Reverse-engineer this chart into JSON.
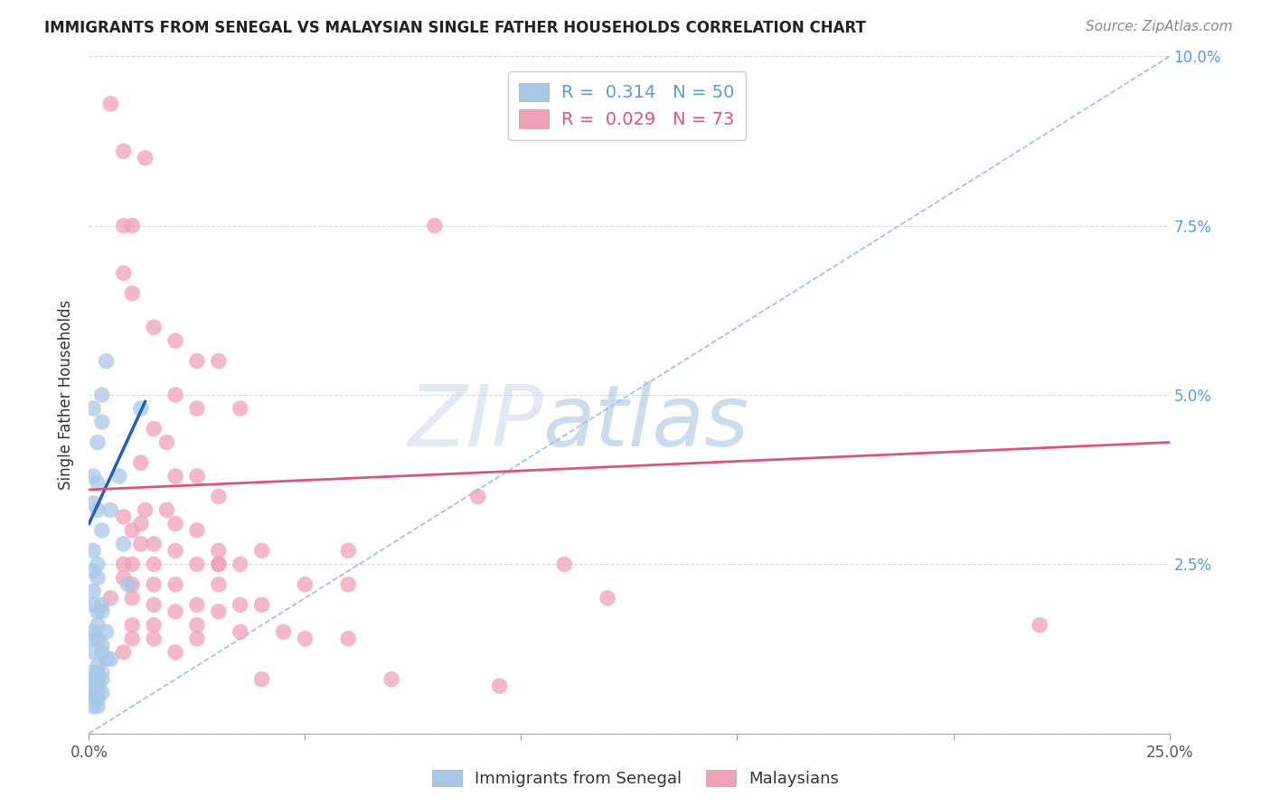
{
  "title": "IMMIGRANTS FROM SENEGAL VS MALAYSIAN SINGLE FATHER HOUSEHOLDS CORRELATION CHART",
  "source": "Source: ZipAtlas.com",
  "ylabel": "Single Father Households",
  "xlim": [
    0.0,
    0.25
  ],
  "ylim": [
    0.0,
    0.1
  ],
  "watermark_zip": "ZIP",
  "watermark_atlas": "atlas",
  "senegal_color": "#a8c8e8",
  "malaysian_color": "#f0a0b8",
  "senegal_line_color": "#2060c0",
  "malaysian_line_color": "#e05080",
  "diagonal_line_color": "#90b8e0",
  "senegal_points": [
    [
      0.001,
      0.048
    ],
    [
      0.002,
      0.043
    ],
    [
      0.001,
      0.038
    ],
    [
      0.003,
      0.05
    ],
    [
      0.004,
      0.055
    ],
    [
      0.003,
      0.046
    ],
    [
      0.002,
      0.037
    ],
    [
      0.001,
      0.034
    ],
    [
      0.002,
      0.033
    ],
    [
      0.003,
      0.03
    ],
    [
      0.001,
      0.027
    ],
    [
      0.002,
      0.025
    ],
    [
      0.001,
      0.024
    ],
    [
      0.002,
      0.023
    ],
    [
      0.001,
      0.021
    ],
    [
      0.001,
      0.019
    ],
    [
      0.002,
      0.018
    ],
    [
      0.003,
      0.018
    ],
    [
      0.002,
      0.016
    ],
    [
      0.001,
      0.015
    ],
    [
      0.004,
      0.015
    ],
    [
      0.002,
      0.014
    ],
    [
      0.001,
      0.014
    ],
    [
      0.003,
      0.013
    ],
    [
      0.001,
      0.012
    ],
    [
      0.003,
      0.012
    ],
    [
      0.004,
      0.011
    ],
    [
      0.005,
      0.011
    ],
    [
      0.002,
      0.01
    ],
    [
      0.001,
      0.009
    ],
    [
      0.002,
      0.009
    ],
    [
      0.003,
      0.009
    ],
    [
      0.001,
      0.008
    ],
    [
      0.002,
      0.008
    ],
    [
      0.003,
      0.008
    ],
    [
      0.001,
      0.007
    ],
    [
      0.002,
      0.007
    ],
    [
      0.001,
      0.006
    ],
    [
      0.002,
      0.006
    ],
    [
      0.003,
      0.006
    ],
    [
      0.001,
      0.005
    ],
    [
      0.002,
      0.005
    ],
    [
      0.001,
      0.004
    ],
    [
      0.002,
      0.004
    ],
    [
      0.003,
      0.019
    ],
    [
      0.005,
      0.033
    ],
    [
      0.007,
      0.038
    ],
    [
      0.008,
      0.028
    ],
    [
      0.009,
      0.022
    ],
    [
      0.012,
      0.048
    ]
  ],
  "malaysian_points": [
    [
      0.005,
      0.093
    ],
    [
      0.008,
      0.086
    ],
    [
      0.013,
      0.085
    ],
    [
      0.008,
      0.075
    ],
    [
      0.01,
      0.075
    ],
    [
      0.008,
      0.068
    ],
    [
      0.01,
      0.065
    ],
    [
      0.015,
      0.06
    ],
    [
      0.02,
      0.058
    ],
    [
      0.025,
      0.055
    ],
    [
      0.03,
      0.055
    ],
    [
      0.02,
      0.05
    ],
    [
      0.025,
      0.048
    ],
    [
      0.035,
      0.048
    ],
    [
      0.015,
      0.045
    ],
    [
      0.018,
      0.043
    ],
    [
      0.012,
      0.04
    ],
    [
      0.02,
      0.038
    ],
    [
      0.025,
      0.038
    ],
    [
      0.03,
      0.035
    ],
    [
      0.013,
      0.033
    ],
    [
      0.018,
      0.033
    ],
    [
      0.008,
      0.032
    ],
    [
      0.012,
      0.031
    ],
    [
      0.02,
      0.031
    ],
    [
      0.025,
      0.03
    ],
    [
      0.01,
      0.03
    ],
    [
      0.015,
      0.028
    ],
    [
      0.012,
      0.028
    ],
    [
      0.02,
      0.027
    ],
    [
      0.03,
      0.027
    ],
    [
      0.04,
      0.027
    ],
    [
      0.008,
      0.025
    ],
    [
      0.01,
      0.025
    ],
    [
      0.015,
      0.025
    ],
    [
      0.025,
      0.025
    ],
    [
      0.035,
      0.025
    ],
    [
      0.008,
      0.023
    ],
    [
      0.01,
      0.022
    ],
    [
      0.015,
      0.022
    ],
    [
      0.02,
      0.022
    ],
    [
      0.03,
      0.022
    ],
    [
      0.05,
      0.022
    ],
    [
      0.06,
      0.022
    ],
    [
      0.005,
      0.02
    ],
    [
      0.01,
      0.02
    ],
    [
      0.015,
      0.019
    ],
    [
      0.025,
      0.019
    ],
    [
      0.035,
      0.019
    ],
    [
      0.04,
      0.019
    ],
    [
      0.02,
      0.018
    ],
    [
      0.03,
      0.018
    ],
    [
      0.01,
      0.016
    ],
    [
      0.015,
      0.016
    ],
    [
      0.025,
      0.016
    ],
    [
      0.035,
      0.015
    ],
    [
      0.045,
      0.015
    ],
    [
      0.01,
      0.014
    ],
    [
      0.015,
      0.014
    ],
    [
      0.025,
      0.014
    ],
    [
      0.05,
      0.014
    ],
    [
      0.06,
      0.014
    ],
    [
      0.008,
      0.012
    ],
    [
      0.02,
      0.012
    ],
    [
      0.03,
      0.025
    ],
    [
      0.03,
      0.025
    ],
    [
      0.06,
      0.027
    ],
    [
      0.09,
      0.035
    ],
    [
      0.11,
      0.025
    ],
    [
      0.12,
      0.02
    ],
    [
      0.08,
      0.075
    ],
    [
      0.22,
      0.016
    ],
    [
      0.04,
      0.008
    ],
    [
      0.07,
      0.008
    ],
    [
      0.095,
      0.007
    ]
  ],
  "senegal_line_x": [
    0.0,
    0.013
  ],
  "senegal_line_y": [
    0.031,
    0.049
  ],
  "malaysian_line_x": [
    0.0,
    0.25
  ],
  "malaysian_line_y": [
    0.036,
    0.043
  ],
  "diagonal_line_x": [
    0.0,
    0.25
  ],
  "diagonal_line_y": [
    0.0,
    0.1
  ]
}
